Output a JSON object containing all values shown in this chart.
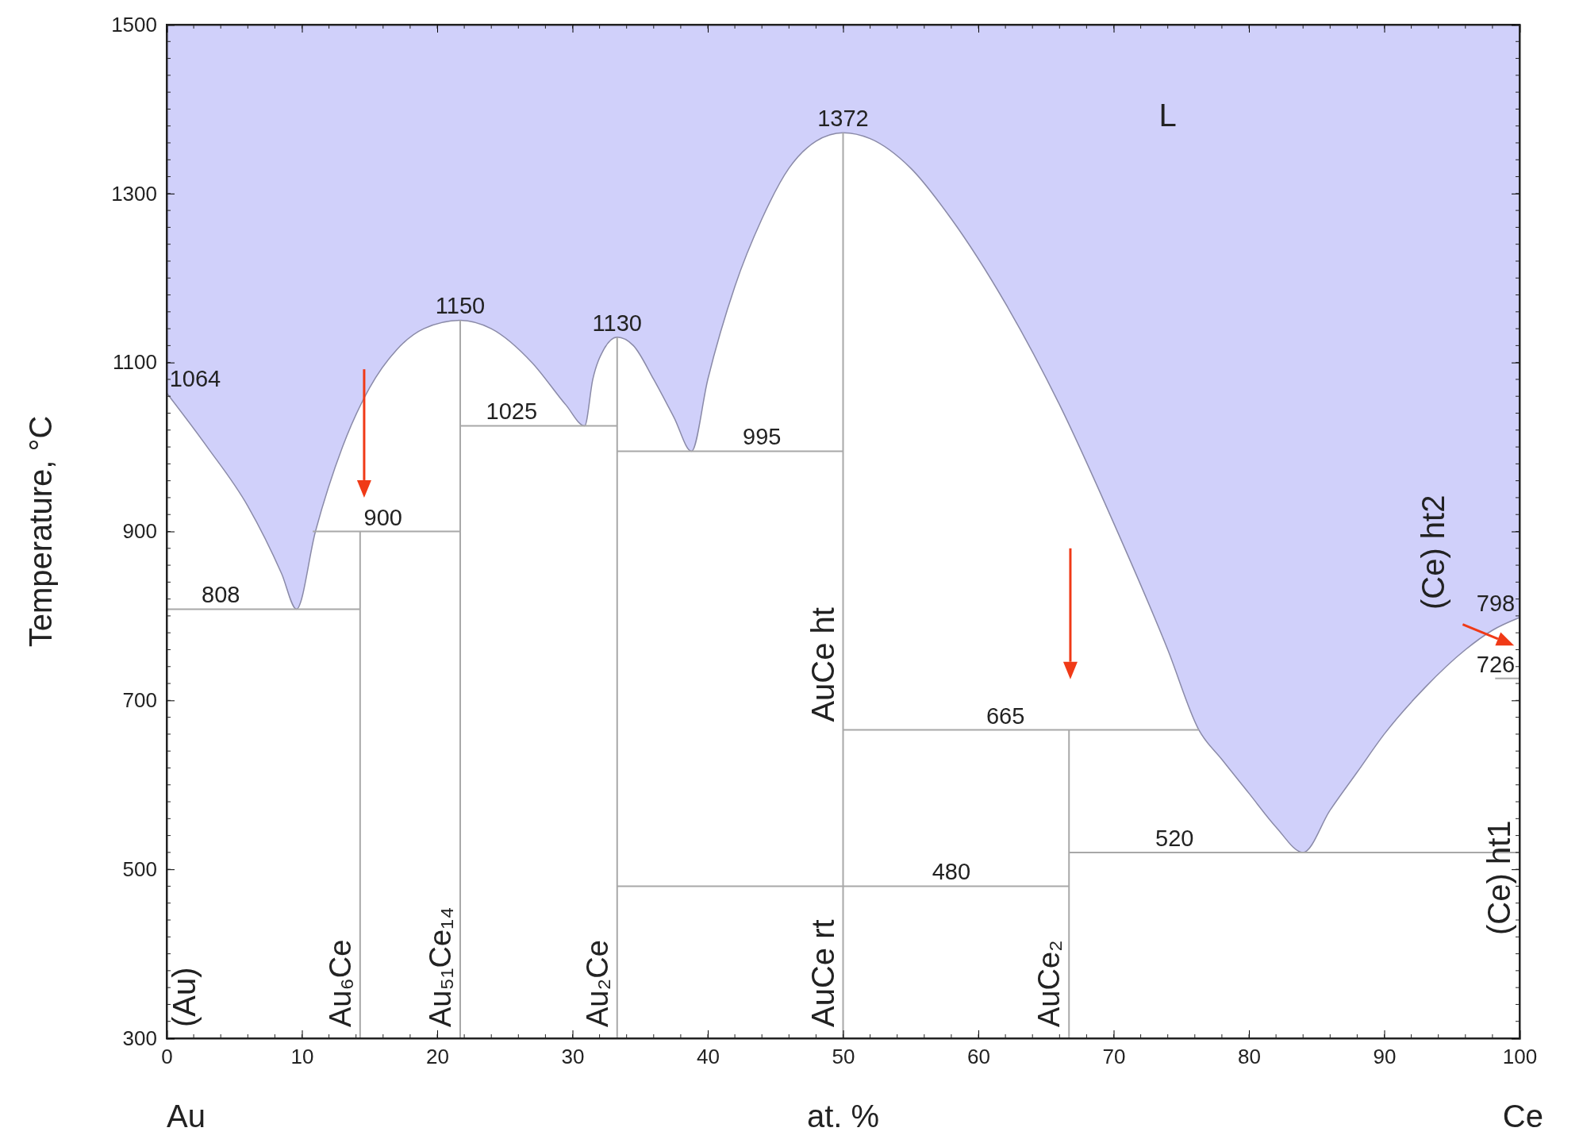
{
  "chart_data": {
    "type": "line",
    "xlabel": "at. %",
    "ylabel": "Temperature, °C",
    "xlim": [
      0,
      100
    ],
    "ylim": [
      300,
      1500
    ],
    "xticks": [
      0,
      10,
      20,
      30,
      40,
      50,
      60,
      70,
      80,
      90,
      100
    ],
    "yticks": [
      300,
      500,
      700,
      900,
      1100,
      1300,
      1500
    ],
    "grid": false,
    "legend": false,
    "marker": "none",
    "line_style": "solid",
    "series": [
      {
        "type": "line",
        "color": "#8a8aa8",
        "upper": [
          1500,
          1500,
          1500,
          1500,
          1500,
          1500,
          1500,
          1500,
          1500,
          1500,
          1500,
          1500,
          1500,
          1500,
          1500,
          1500,
          1500,
          1500,
          1500,
          1500,
          1500,
          1500,
          1500,
          1500,
          1500,
          1500,
          1500,
          1500,
          1500,
          1500,
          1500,
          1500,
          1500,
          1500,
          1500,
          1500,
          1500,
          1500,
          1500,
          1500,
          1500,
          1500,
          1500,
          1500,
          1500,
          1500,
          1500
        ],
        "lower": [
          1064,
          1000,
          930,
          850,
          808,
          900,
          1000,
          1070,
          1115,
          1140,
          1150,
          1140,
          1100,
          1050,
          1025,
          1080,
          1115,
          1130,
          1120,
          1080,
          1035,
          995,
          1080,
          1190,
          1270,
          1330,
          1362,
          1372,
          1365,
          1330,
          1270,
          1170,
          1050,
          910,
          760,
          665,
          630,
          590,
          550,
          520,
          570,
          615,
          660,
          715,
          760,
          783,
          798
        ],
        "x": [
          0,
          3,
          6,
          8.5,
          9.6,
          11,
          13,
          15,
          17,
          19,
          21.7,
          24,
          27,
          29.5,
          30.9,
          31.5,
          32.3,
          33.3,
          34.5,
          36,
          37.5,
          38.8,
          40,
          42,
          44,
          46,
          48,
          50,
          52,
          55,
          58,
          62,
          66,
          70,
          74,
          76.3,
          78,
          80,
          82,
          84,
          86,
          88,
          90,
          93,
          96,
          98,
          100
        ],
        "values": [
          1064,
          1000,
          930,
          850,
          808,
          900,
          1000,
          1070,
          1115,
          1140,
          1150,
          1140,
          1100,
          1050,
          1025,
          1080,
          1115,
          1130,
          1120,
          1080,
          1035,
          995,
          1080,
          1190,
          1270,
          1330,
          1362,
          1372,
          1365,
          1330,
          1270,
          1170,
          1050,
          910,
          760,
          665,
          630,
          590,
          550,
          520,
          570,
          615,
          660,
          715,
          760,
          783,
          798
        ]
      },
      {
        "color": "#a8a8a8",
        "x": [
          0,
          14.3
        ],
        "values": [
          808,
          808
        ]
      },
      {
        "color": "#a8a8a8",
        "x": [
          10.8,
          21.7
        ],
        "values": [
          900,
          900
        ]
      },
      {
        "color": "#a8a8a8",
        "x": [
          21.7,
          33.3
        ],
        "values": [
          1025,
          1025
        ]
      },
      {
        "color": "#a8a8a8",
        "x": [
          33.3,
          50
        ],
        "values": [
          995,
          995
        ]
      },
      {
        "color": "#a8a8a8",
        "x": [
          50,
          76.3
        ],
        "values": [
          665,
          665
        ]
      },
      {
        "color": "#a8a8a8",
        "x": [
          33.3,
          66.7
        ],
        "values": [
          480,
          480
        ]
      },
      {
        "color": "#a8a8a8",
        "x": [
          66.7,
          100
        ],
        "values": [
          520,
          520
        ]
      },
      {
        "color": "#a8a8a8",
        "x": [
          98.2,
          100
        ],
        "values": [
          726,
          726
        ]
      },
      {
        "name": "Au₆Ce",
        "color": "#a8a8a8",
        "x": [
          14.3,
          14.3
        ],
        "values": [
          300,
          900
        ]
      },
      {
        "name": "Au₅₁Ce₁₄",
        "color": "#a8a8a8",
        "x": [
          21.7,
          21.7
        ],
        "values": [
          300,
          1150
        ]
      },
      {
        "name": "Au₂Ce",
        "color": "#a8a8a8",
        "x": [
          33.3,
          33.3
        ],
        "values": [
          300,
          1130
        ]
      },
      {
        "color": "#a8a8a8",
        "x": [
          50,
          50
        ],
        "values": [
          300,
          1372
        ]
      },
      {
        "name": "AuCe₂",
        "color": "#a8a8a8",
        "x": [
          66.7,
          66.7
        ],
        "values": [
          300,
          665
        ]
      }
    ],
    "annotations": [
      {
        "text": "1064",
        "x": 0,
        "y": 1064
      },
      {
        "text": "808",
        "x": 4,
        "y": 808
      },
      {
        "text": "900",
        "x": 16,
        "y": 900
      },
      {
        "text": "1150",
        "x": 21.7,
        "y": 1150
      },
      {
        "text": "1025",
        "x": 25.5,
        "y": 1025
      },
      {
        "text": "1130",
        "x": 33.3,
        "y": 1130
      },
      {
        "text": "995",
        "x": 44,
        "y": 995
      },
      {
        "text": "1372",
        "x": 50,
        "y": 1372
      },
      {
        "text": "665",
        "x": 62,
        "y": 665
      },
      {
        "text": "480",
        "x": 58,
        "y": 480
      },
      {
        "text": "520",
        "x": 74.5,
        "y": 520
      },
      {
        "text": "798",
        "x": 100,
        "y": 798
      },
      {
        "text": "726",
        "x": 99,
        "y": 726
      },
      "L",
      "Au",
      "Ce",
      "(Au)",
      "AuCe rt",
      "AuCe ht",
      "(Ce) ht1",
      "(Ce) ht2"
    ]
  }
}
